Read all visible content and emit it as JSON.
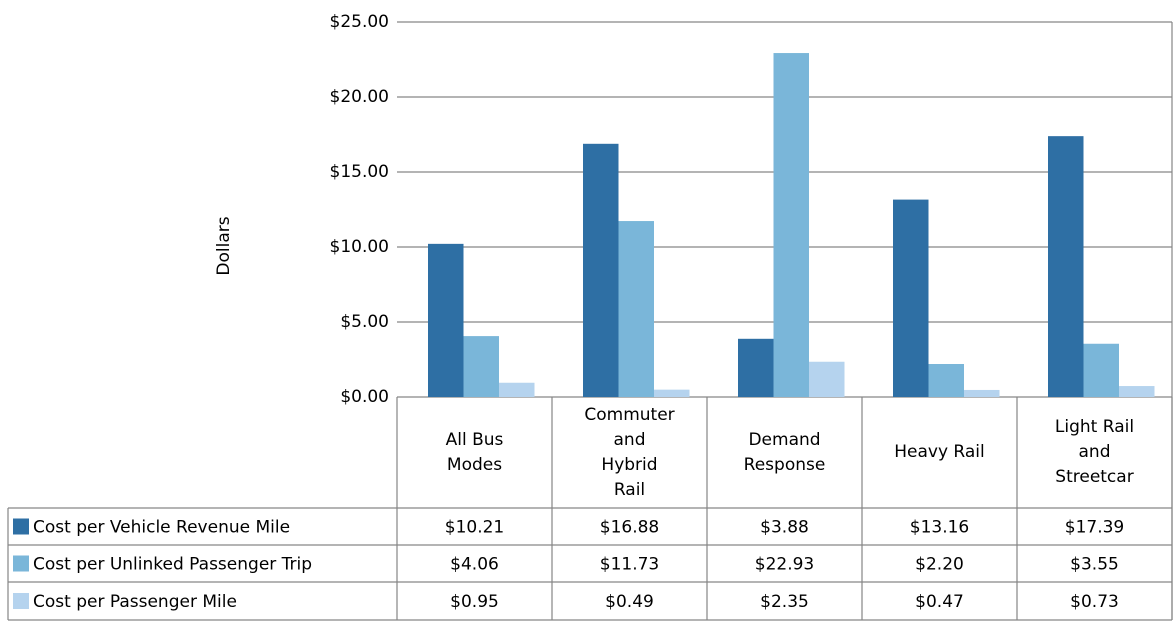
{
  "chart_data": {
    "type": "bar",
    "y_label": "Dollars",
    "categories": [
      "All Bus Modes",
      "Commuter and Hybrid Rail",
      "Demand Response",
      "Heavy Rail",
      "Light Rail and Streetcar"
    ],
    "series": [
      {
        "name": "Cost per Vehicle Revenue Mile",
        "color": "#2e6fa4",
        "values": [
          10.21,
          16.88,
          3.88,
          13.16,
          17.39
        ],
        "value_labels": [
          "$10.21",
          "$16.88",
          "$3.88",
          "$13.16",
          "$17.39"
        ]
      },
      {
        "name": "Cost per Unlinked Passenger Trip",
        "color": "#7ab6d9",
        "values": [
          4.06,
          11.73,
          22.93,
          2.2,
          3.55
        ],
        "value_labels": [
          "$4.06",
          "$11.73",
          "$22.93",
          "$2.20",
          "$3.55"
        ]
      },
      {
        "name": "Cost per Passenger Mile",
        "color": "#b5d3ee",
        "values": [
          0.95,
          0.49,
          2.35,
          0.47,
          0.73
        ],
        "value_labels": [
          "$0.95",
          "$0.49",
          "$2.35",
          "$0.47",
          "$0.73"
        ]
      }
    ],
    "ylim": [
      0,
      25
    ],
    "yticks": [
      {
        "value": 0,
        "label": "$0.00"
      },
      {
        "value": 5,
        "label": "$5.00"
      },
      {
        "value": 10,
        "label": "$10.00"
      },
      {
        "value": 15,
        "label": "$15.00"
      },
      {
        "value": 20,
        "label": "$20.00"
      },
      {
        "value": 25,
        "label": "$25.00"
      }
    ],
    "grid": true
  }
}
